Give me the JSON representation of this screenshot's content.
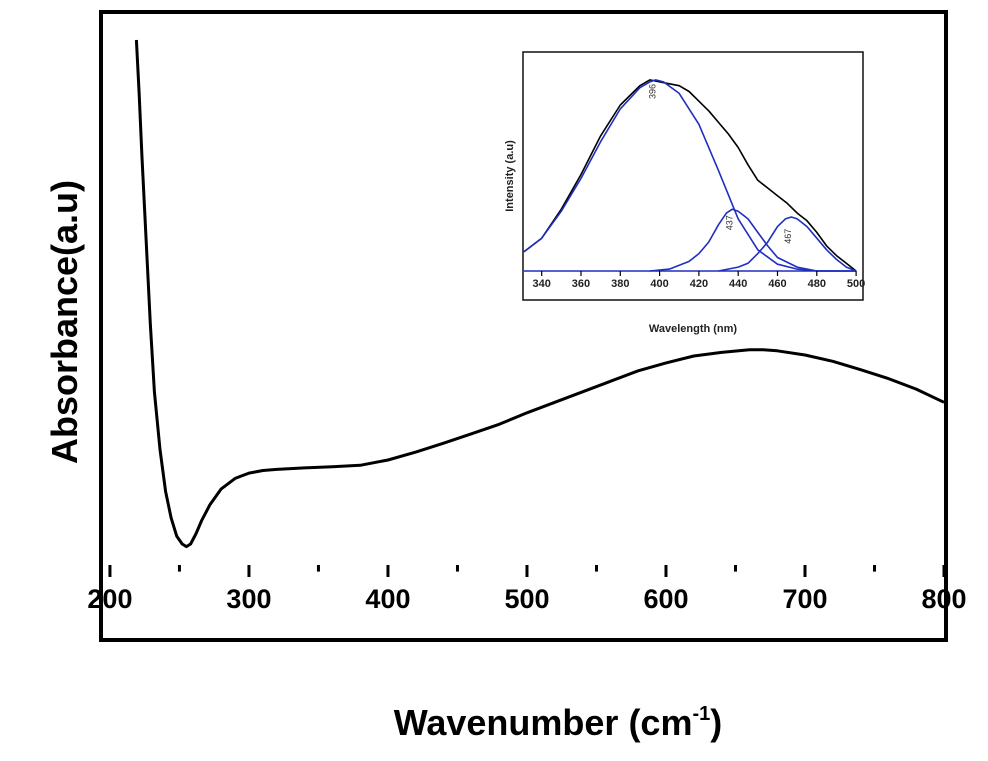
{
  "chart_data": [
    {
      "type": "line",
      "xlabel": "Wavenumber (cm",
      "xlabel_sup": "-1",
      "xlabel_close": ")",
      "ylabel": "Absorbance(a.u)",
      "xlim": [
        195,
        800
      ],
      "ylim": [
        0,
        1
      ],
      "xticks": [
        "200",
        "300",
        "400",
        "500",
        "600",
        "700",
        "800"
      ],
      "series": [
        {
          "color": "#000000",
          "x": [
            219,
            221,
            223,
            226,
            229,
            232,
            236,
            240,
            244,
            248,
            252,
            255,
            258,
            262,
            266,
            272,
            280,
            290,
            300,
            310,
            320,
            340,
            360,
            380,
            400,
            420,
            440,
            460,
            480,
            500,
            520,
            540,
            560,
            580,
            600,
            620,
            640,
            660,
            670,
            680,
            700,
            720,
            740,
            760,
            780,
            800
          ],
          "y": [
            1.0,
            0.9,
            0.78,
            0.62,
            0.46,
            0.33,
            0.22,
            0.14,
            0.09,
            0.055,
            0.04,
            0.035,
            0.04,
            0.06,
            0.085,
            0.115,
            0.145,
            0.165,
            0.175,
            0.18,
            0.182,
            0.185,
            0.187,
            0.19,
            0.2,
            0.215,
            0.232,
            0.25,
            0.268,
            0.29,
            0.31,
            0.33,
            0.35,
            0.37,
            0.385,
            0.398,
            0.405,
            0.41,
            0.41,
            0.408,
            0.4,
            0.388,
            0.372,
            0.355,
            0.335,
            0.31
          ]
        }
      ]
    },
    {
      "type": "line",
      "xlabel": "Wavelength (nm)",
      "ylabel": "Intensity (a.u)",
      "xlim": [
        331,
        503
      ],
      "ylim": [
        0,
        1
      ],
      "xticks": [
        "340",
        "360",
        "380",
        "400",
        "420",
        "440",
        "460",
        "480",
        "500"
      ],
      "peak_labels": [
        {
          "text": "396",
          "x": 398,
          "y": 0.93
        },
        {
          "text": "437",
          "x": 437,
          "y": 0.25
        },
        {
          "text": "467",
          "x": 467,
          "y": 0.18
        }
      ],
      "series": [
        {
          "color": "#000000",
          "x": [
            331,
            340,
            350,
            360,
            370,
            380,
            390,
            395,
            400,
            405,
            410,
            415,
            420,
            425,
            430,
            435,
            440,
            445,
            450,
            455,
            460,
            465,
            470,
            475,
            480,
            485,
            490,
            495,
            500
          ],
          "y": [
            0.1,
            0.17,
            0.32,
            0.5,
            0.7,
            0.86,
            0.96,
            0.99,
            0.98,
            0.97,
            0.96,
            0.93,
            0.88,
            0.83,
            0.77,
            0.71,
            0.64,
            0.55,
            0.47,
            0.43,
            0.39,
            0.35,
            0.3,
            0.26,
            0.2,
            0.13,
            0.08,
            0.04,
            0.0
          ]
        },
        {
          "color": "#1f2fbf",
          "x": [
            331,
            340,
            350,
            360,
            370,
            380,
            390,
            395,
            398,
            402,
            410,
            420,
            430,
            440,
            450,
            460,
            470,
            480,
            490,
            500
          ],
          "y": [
            0.1,
            0.17,
            0.31,
            0.48,
            0.67,
            0.84,
            0.95,
            0.98,
            0.99,
            0.98,
            0.92,
            0.76,
            0.52,
            0.27,
            0.11,
            0.035,
            0.01,
            0.0,
            0.0,
            0.0
          ]
        },
        {
          "color": "#1f2fbf",
          "x": [
            395,
            405,
            415,
            420,
            425,
            430,
            434,
            437,
            440,
            445,
            450,
            455,
            460,
            470,
            480,
            490,
            500
          ],
          "y": [
            0.0,
            0.01,
            0.05,
            0.09,
            0.15,
            0.24,
            0.3,
            0.32,
            0.31,
            0.27,
            0.2,
            0.13,
            0.07,
            0.02,
            0.0,
            0.0,
            0.0
          ]
        },
        {
          "color": "#1f2fbf",
          "x": [
            430,
            440,
            445,
            450,
            455,
            460,
            464,
            467,
            470,
            475,
            480,
            485,
            490,
            495,
            500
          ],
          "y": [
            0.0,
            0.02,
            0.04,
            0.09,
            0.15,
            0.23,
            0.27,
            0.28,
            0.27,
            0.23,
            0.17,
            0.11,
            0.06,
            0.02,
            0.0
          ]
        },
        {
          "color": "#1f2fbf",
          "x": [
            331,
            500
          ],
          "y": [
            0.0,
            0.0
          ]
        }
      ]
    }
  ]
}
